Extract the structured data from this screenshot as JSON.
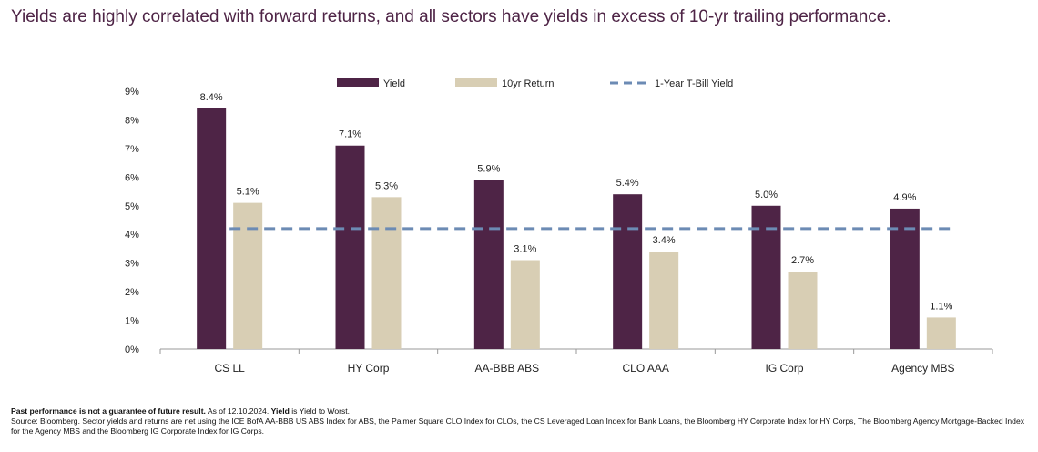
{
  "headline": "Yields are highly correlated with forward returns, and all sectors have yields in excess of 10-yr trailing performance.",
  "colors": {
    "yield": "#4e2446",
    "return": "#d8ceb4",
    "tbill": "#6c8bb4",
    "axis": "#999999"
  },
  "chart_data": {
    "type": "bar",
    "categories": [
      "CS LL",
      "HY Corp",
      "AA-BBB ABS",
      "CLO AAA",
      "IG Corp",
      "Agency MBS"
    ],
    "series": [
      {
        "name": "Yield",
        "values": [
          8.4,
          7.1,
          5.9,
          5.4,
          5.0,
          4.9
        ],
        "labels": [
          "8.4%",
          "7.1%",
          "5.9%",
          "5.4%",
          "5.0%",
          "4.9%"
        ]
      },
      {
        "name": "10yr Return",
        "values": [
          5.1,
          5.3,
          3.1,
          3.4,
          2.7,
          1.1
        ],
        "labels": [
          "5.1%",
          "5.3%",
          "3.1%",
          "3.4%",
          "2.7%",
          "1.1%"
        ]
      }
    ],
    "reference_line": {
      "name": "1-Year T-Bill Yield",
      "value": 4.2,
      "style": "dashed"
    },
    "ylim": [
      0,
      9
    ],
    "yticks": [
      "0%",
      "1%",
      "2%",
      "3%",
      "4%",
      "5%",
      "6%",
      "7%",
      "8%",
      "9%"
    ],
    "legend_position": "top-center",
    "grid": false
  },
  "footnote": {
    "bold1": "Past performance is not a guarantee of future result.",
    "text1": " As of 12.10.2024. ",
    "bold2": "Yield",
    "text2": " is Yield to Worst.",
    "source": "Source: Bloomberg. Sector yields and returns are net using the ICE BofA AA-BBB US ABS Index for ABS, the Palmer Square CLO Index for CLOs, the CS Leveraged Loan Index for Bank Loans, the Bloomberg HY Corporate Index for HY Corps, The Bloomberg Agency Mortgage-Backed Index for the Agency MBS and the Bloomberg IG Corporate Index for IG Corps."
  }
}
